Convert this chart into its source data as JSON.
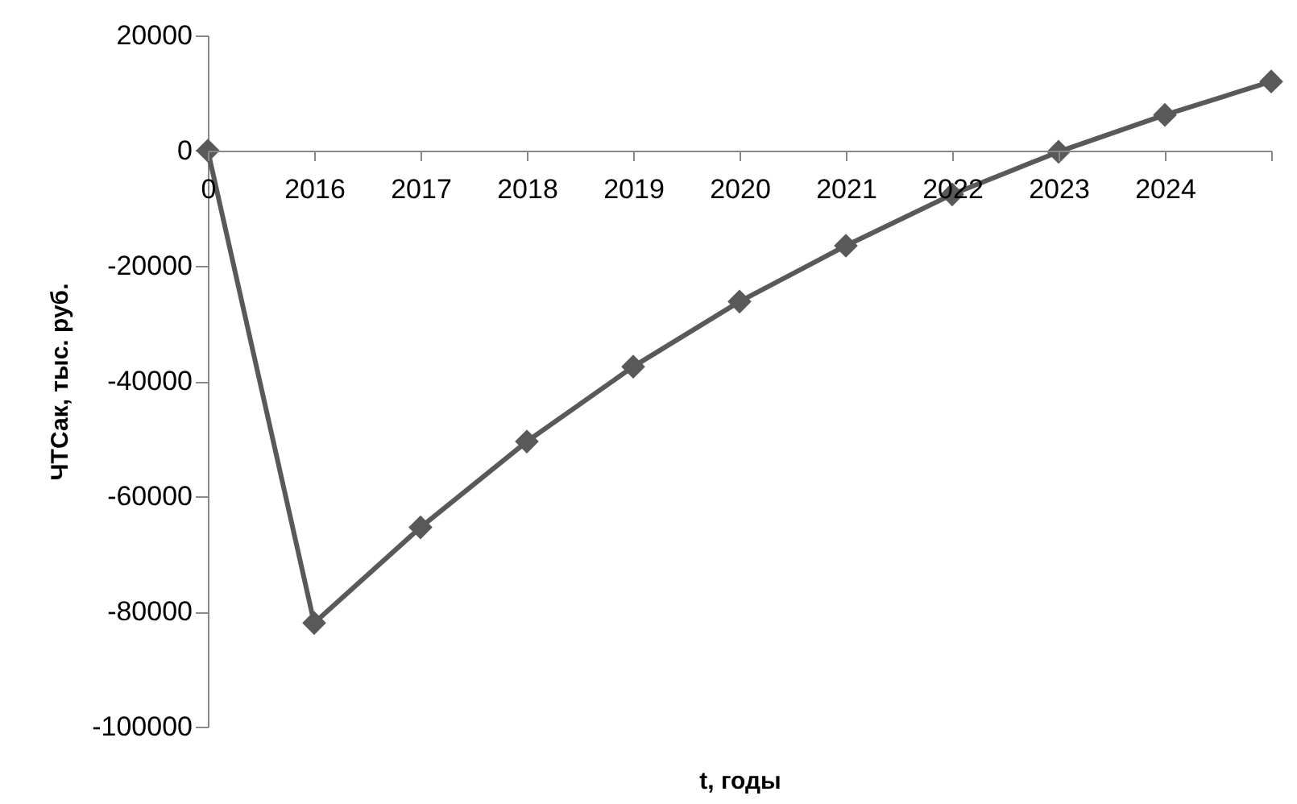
{
  "chart_data": {
    "type": "line",
    "xlabel": "t, годы",
    "ylabel": "ЧТСак, тыс. руб.",
    "categories": [
      "0",
      "2016",
      "2017",
      "2018",
      "2019",
      "2020",
      "2021",
      "2022",
      "2023",
      "2024",
      null
    ],
    "series": [
      {
        "color": "#595959",
        "values": [
          0,
          -82000,
          -65400,
          -50500,
          -37500,
          -26200,
          -16500,
          -7600,
          -200,
          6200,
          12000
        ]
      }
    ],
    "ylim": [
      -100000,
      20000
    ],
    "yticks": [
      -100000,
      -80000,
      -60000,
      -40000,
      -20000,
      0,
      20000
    ],
    "marker": "diamond",
    "grid": false,
    "legend": false
  }
}
